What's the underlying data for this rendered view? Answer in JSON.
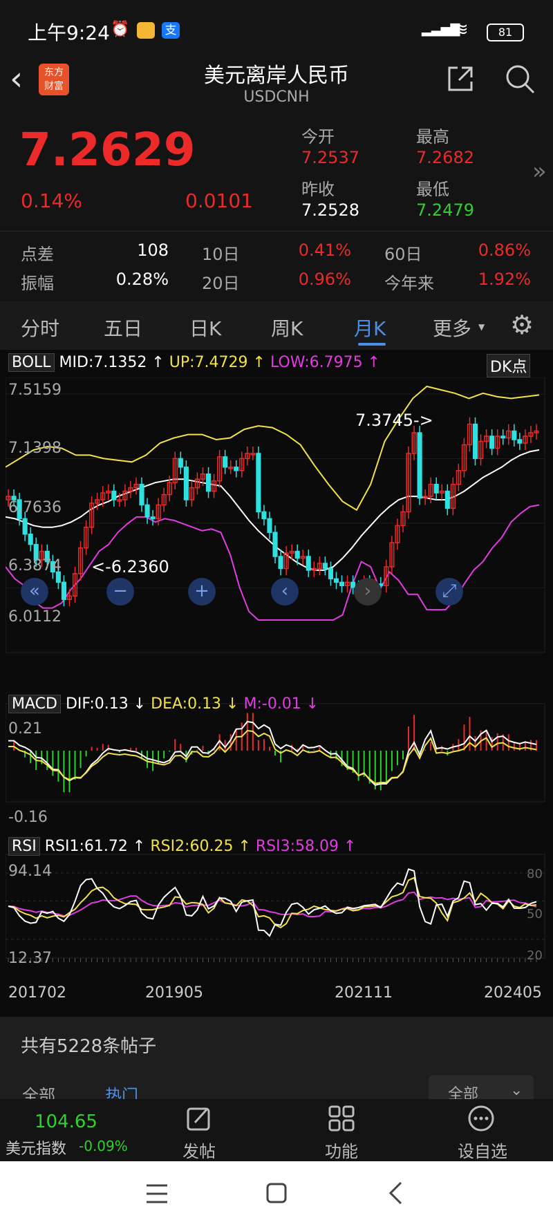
{
  "status_bar": {
    "time": "上午9:24",
    "battery": "81"
  },
  "header": {
    "logo_text": "东方财富",
    "title": "美元离岸人民币",
    "code": "USDCNH"
  },
  "quote": {
    "price": "7.2629",
    "change_pct": "0.14%",
    "change": "0.0101",
    "open_label": "今开",
    "open": "7.2537",
    "high_label": "最高",
    "high": "7.2682",
    "prev_close_label": "昨收",
    "prev_close": "7.2528",
    "low_label": "最低",
    "low": "7.2479",
    "stats": [
      {
        "label": "点差",
        "value": "108"
      },
      {
        "label": "10日",
        "value": "0.41%"
      },
      {
        "label": "60日",
        "value": "0.86%"
      },
      {
        "label": "振幅",
        "value": "0.28%"
      },
      {
        "label": "20日",
        "value": "0.96%"
      },
      {
        "label": "今年来",
        "value": "1.92%"
      }
    ]
  },
  "tabs": [
    "分时",
    "五日",
    "日K",
    "周K",
    "月K",
    "更多"
  ],
  "active_tab": "月K",
  "boll": {
    "name": "BOLL",
    "mid": "MID:7.1352",
    "up": "UP:7.4729",
    "low": "LOW:6.7975",
    "dk": "DK点"
  },
  "macd": {
    "name": "MACD",
    "dif": "DIF:0.13",
    "dea": "DEA:0.13",
    "m": "M:-0.01"
  },
  "rsi": {
    "name": "RSI",
    "rsi1": "RSI1:61.72",
    "rsi2": "RSI2:60.25",
    "rsi3": "RSI3:58.09"
  },
  "colors": {
    "up": "#ec2a2a",
    "down": "#2ee0e0",
    "yellow": "#f3e24a",
    "magenta": "#e23ce2",
    "accent": "#4a8fe8"
  },
  "chart_data": {
    "type": "candlestick",
    "y_ticks": [
      "7.5159",
      "7.1398",
      "6.7636",
      "6.3874",
      "6.0112"
    ],
    "x_ticks": [
      "201702",
      "201905",
      "202111",
      "202405"
    ],
    "annotations": [
      "7.3745->",
      "<-6.2360"
    ],
    "macd_ticks": [
      "0.21",
      "-0.16"
    ],
    "rsi_ticks": [
      "94.14",
      "12.37",
      "80",
      "50",
      "20"
    ],
    "close": [
      6.88,
      6.86,
      6.75,
      6.66,
      6.6,
      6.51,
      6.56,
      6.5,
      6.44,
      6.38,
      6.28,
      6.3,
      6.43,
      6.58,
      6.7,
      6.84,
      6.86,
      6.9,
      6.91,
      6.86,
      6.86,
      6.91,
      6.93,
      6.95,
      6.83,
      6.76,
      6.75,
      6.83,
      6.89,
      6.96,
      7.1,
      7.05,
      6.86,
      6.93,
      6.98,
      7.01,
      6.91,
      6.97,
      7.11,
      7.05,
      7.05,
      7.03,
      7.1,
      7.13,
      7.13,
      6.79,
      6.75,
      6.67,
      6.53,
      6.46,
      6.55,
      6.56,
      6.52,
      6.53,
      6.45,
      6.46,
      6.49,
      6.46,
      6.4,
      6.38,
      6.36,
      6.38,
      6.35,
      6.34,
      6.38,
      6.37,
      6.37,
      6.36,
      6.47,
      6.61,
      6.71,
      6.79,
      7.13,
      7.25,
      6.87,
      6.88,
      6.95,
      6.9,
      6.91,
      6.81,
      6.95,
      7.03,
      7.18,
      7.3,
      7.1,
      7.2,
      7.23,
      7.16,
      7.23,
      7.22,
      7.26,
      7.21,
      7.19,
      7.23,
      7.25,
      7.26
    ],
    "mid": [
      6.76,
      6.75,
      6.73,
      6.71,
      6.7,
      6.7,
      6.71,
      6.73,
      6.76,
      6.8,
      6.83,
      6.85,
      6.88,
      6.9,
      6.92,
      6.94,
      6.96,
      6.97,
      6.98,
      6.98,
      6.97,
      6.96,
      6.95,
      6.94,
      6.88,
      6.81,
      6.74,
      6.68,
      6.63,
      6.58,
      6.54,
      6.5,
      6.47,
      6.45,
      6.45,
      6.47,
      6.52,
      6.58,
      6.65,
      6.71,
      6.77,
      6.82,
      6.86,
      6.88,
      6.88,
      6.87,
      6.86,
      6.86,
      6.88,
      6.91,
      6.95,
      6.99,
      7.02,
      7.05,
      7.09,
      7.12,
      7.14,
      7.15
    ],
    "up": [
      7.05,
      7.1,
      7.15,
      7.17,
      7.16,
      7.12,
      7.12,
      7.1,
      7.09,
      7.08,
      7.12,
      7.19,
      7.22,
      7.24,
      7.24,
      7.21,
      7.22,
      7.27,
      7.29,
      7.28,
      7.24,
      7.18,
      7.06,
      6.95,
      6.85,
      6.8,
      6.95,
      7.2,
      7.33,
      7.45,
      7.52,
      7.5,
      7.48,
      7.45,
      7.48,
      7.46,
      7.45,
      7.46,
      7.47
    ]
  },
  "forum": {
    "count_text": "共有5228条帖子",
    "tabs": [
      "全部",
      "热门"
    ],
    "filter": "全部"
  },
  "bottom_bar": {
    "index_value": "104.65",
    "index_name": "美元指数",
    "index_change": "-0.09%",
    "items": [
      "发帖",
      "功能",
      "设自选"
    ]
  }
}
